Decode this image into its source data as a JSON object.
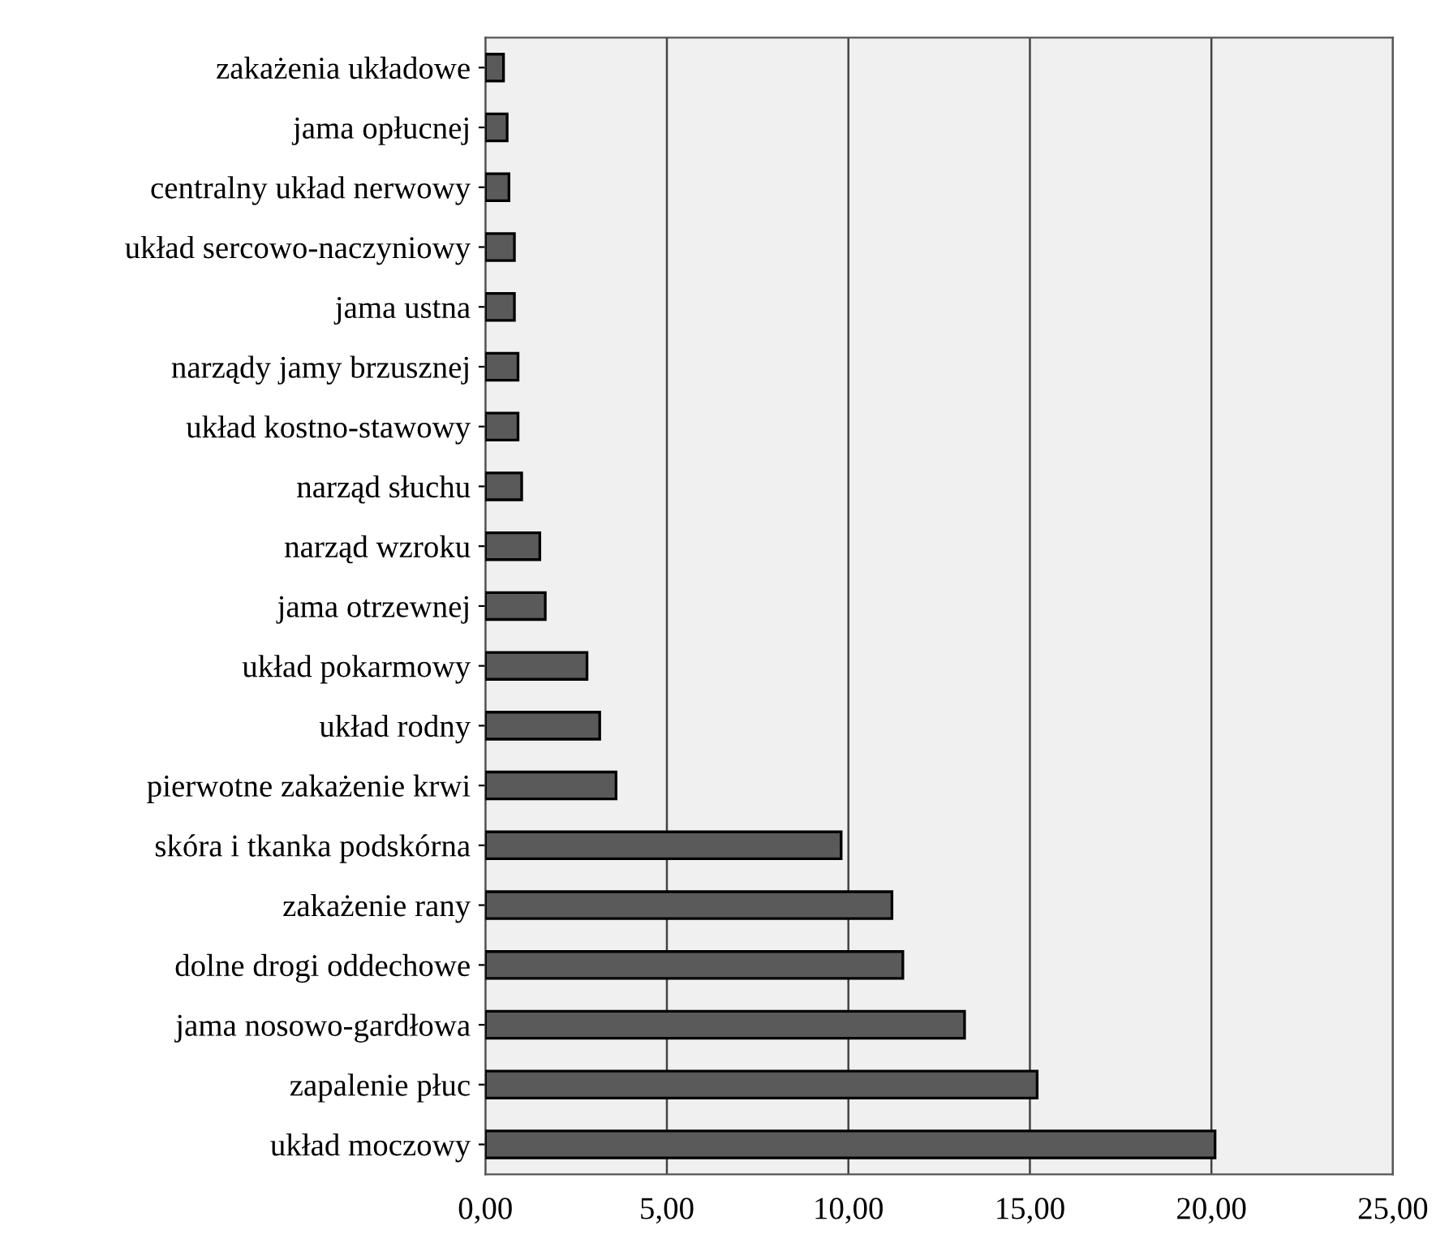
{
  "chart_data": {
    "type": "bar",
    "orientation": "horizontal",
    "categories": [
      "zakażenia układowe",
      "jama opłucnej",
      "centralny układ nerwowy",
      "układ sercowo-naczyniowy",
      "jama ustna",
      "narządy jamy brzusznej",
      "układ kostno-stawowy",
      "narząd słuchu",
      "narząd wzroku",
      "jama otrzewnej",
      "układ pokarmowy",
      "układ rodny",
      "pierwotne zakażenie krwi",
      "skóra i tkanka podskórna",
      "zakażenie rany",
      "dolne drogi oddechowe",
      "jama nosowo-gardłowa",
      "zapalenie płuc",
      "układ moczowy"
    ],
    "values": [
      0.5,
      0.6,
      0.65,
      0.8,
      0.8,
      0.9,
      0.9,
      1.0,
      1.5,
      1.65,
      2.8,
      3.15,
      3.6,
      9.8,
      11.2,
      11.5,
      13.2,
      15.2,
      20.1
    ],
    "color": "#5a5a5a",
    "xlim": [
      0,
      25
    ],
    "xticks": [
      {
        "value": 0,
        "label": "0,00"
      },
      {
        "value": 5,
        "label": "5,00"
      },
      {
        "value": 10,
        "label": "10,00"
      },
      {
        "value": 15,
        "label": "15,00"
      },
      {
        "value": 20,
        "label": "20,00"
      },
      {
        "value": 25,
        "label": "25,00"
      }
    ],
    "grid": "x"
  }
}
